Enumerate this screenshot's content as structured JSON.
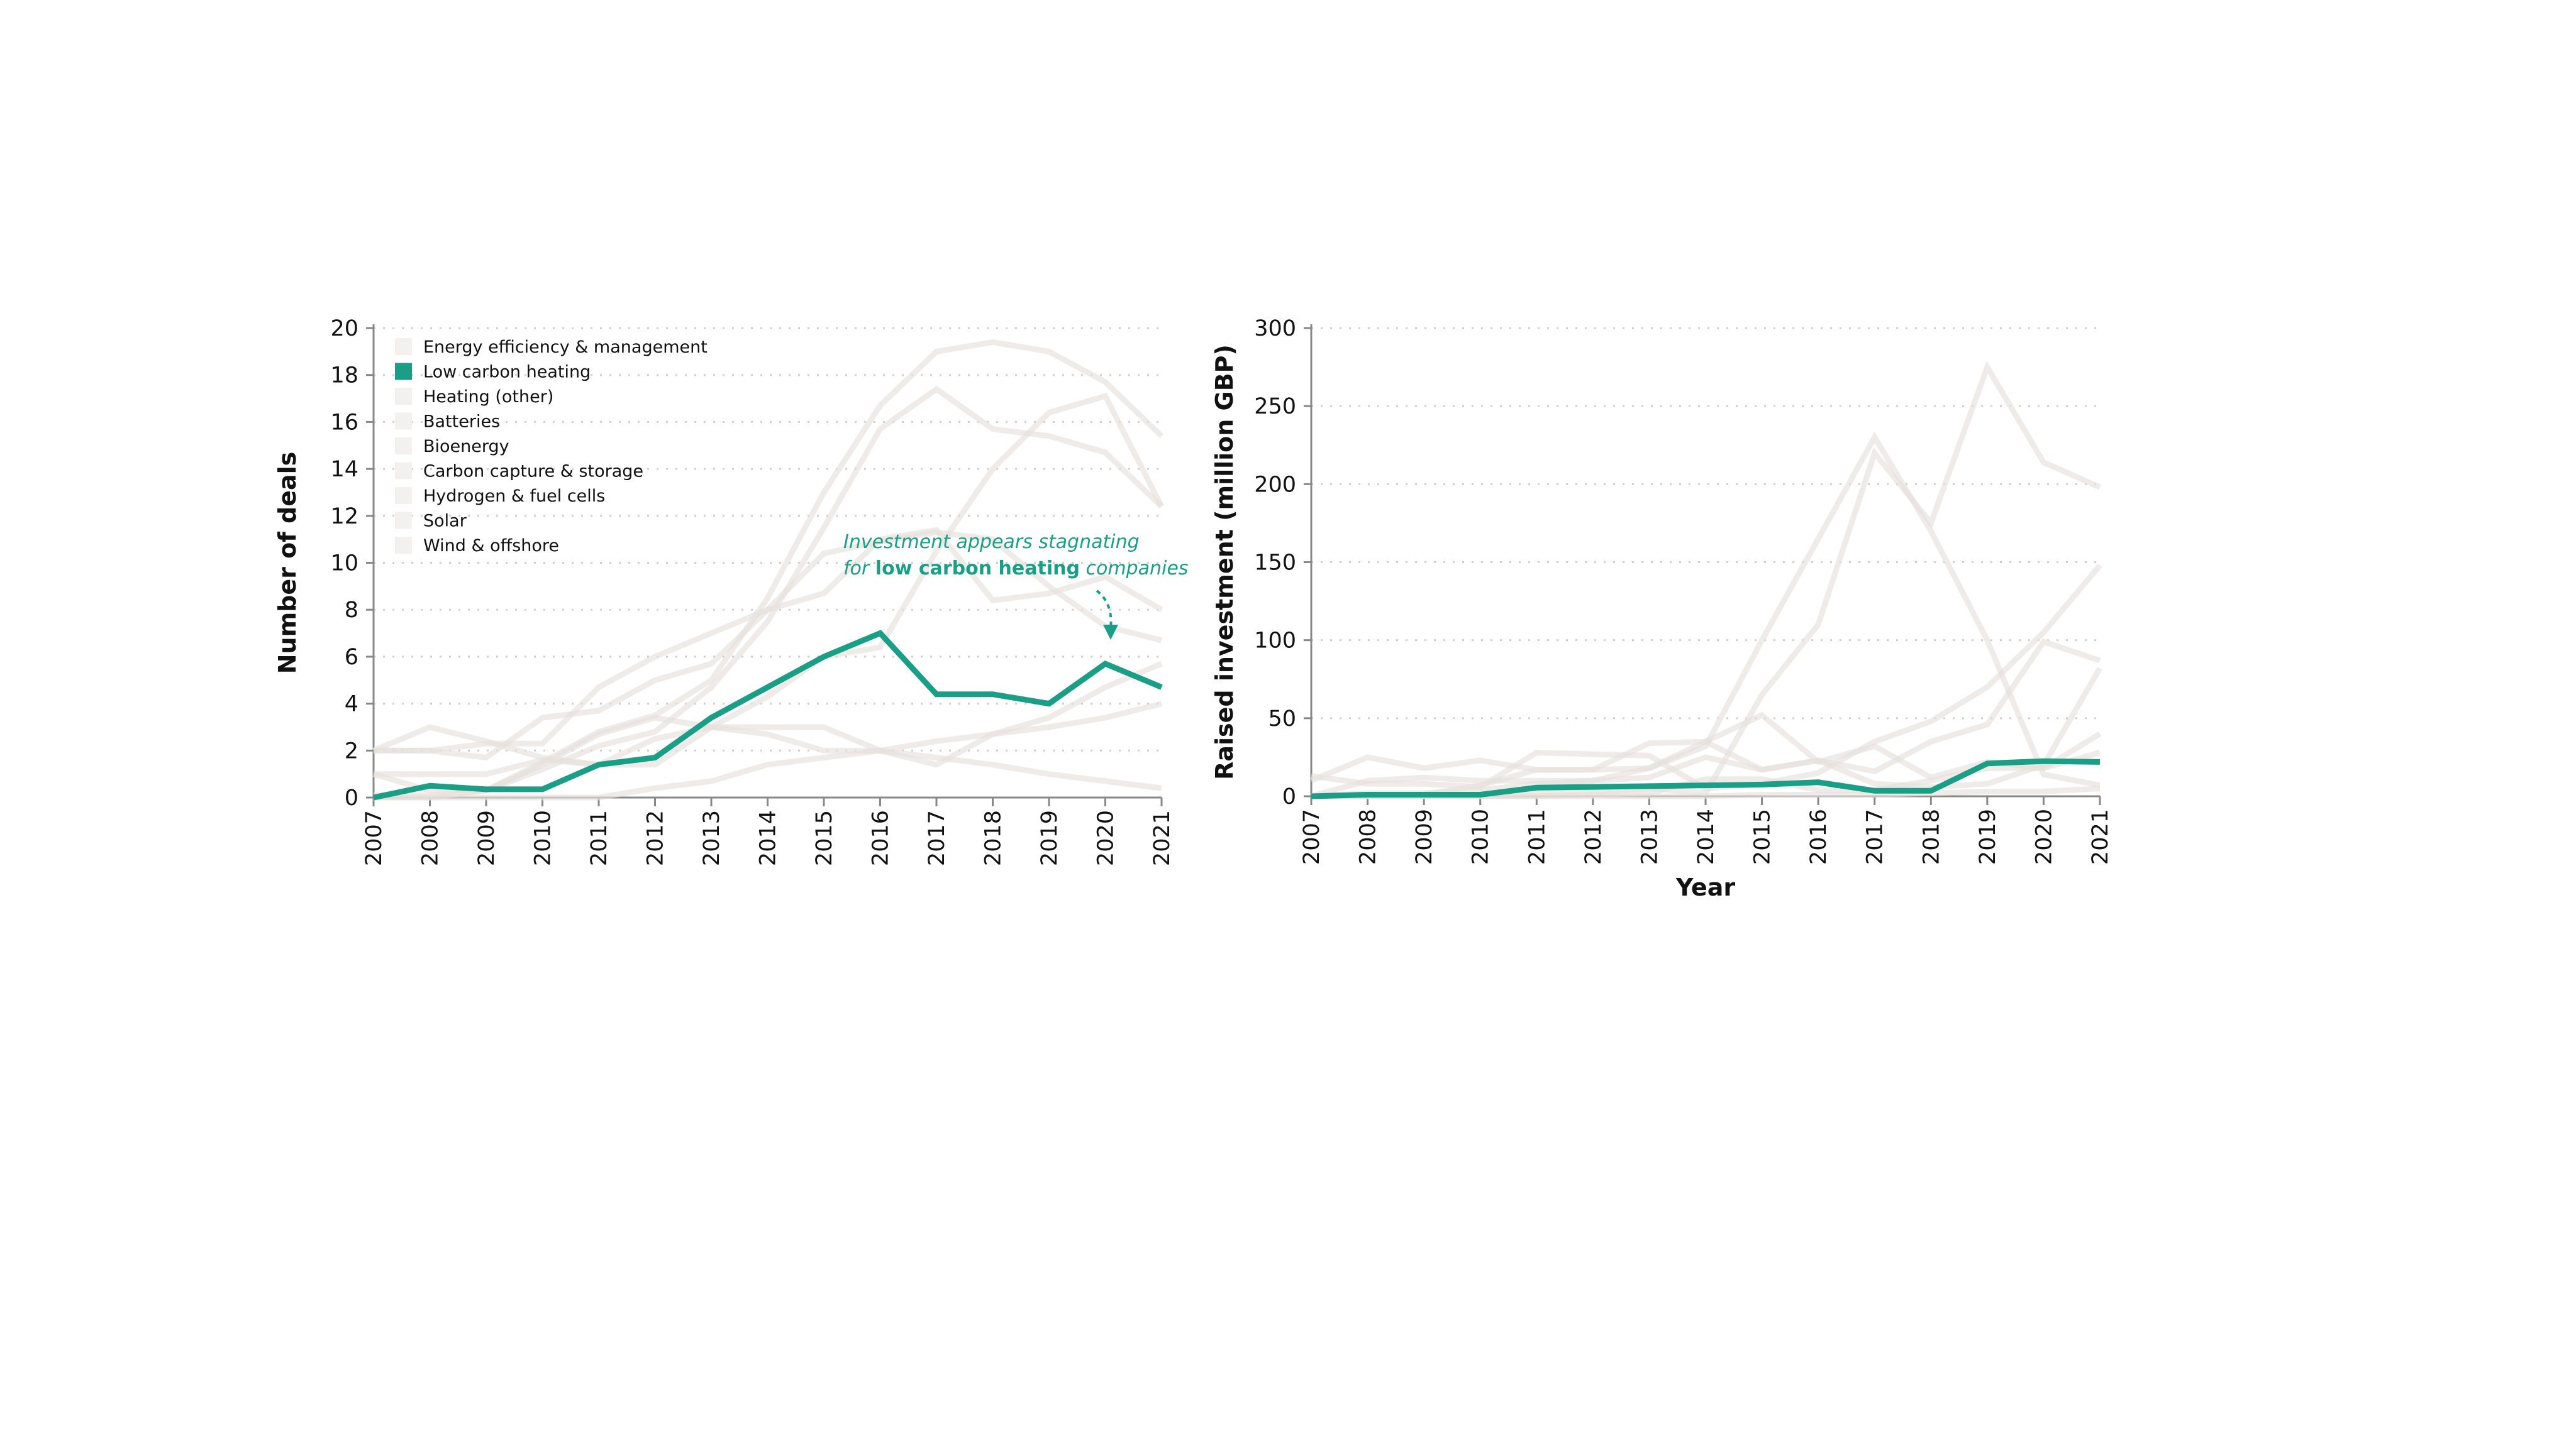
{
  "colors": {
    "highlight": "#1a9e85",
    "muted_line": "#e6e0dc",
    "muted_swatch": "#f3f1ef",
    "grid": "#cfcfcf",
    "axis": "#888888"
  },
  "legend": [
    "Energy efficiency & management",
    "Low carbon heating",
    "Heating (other)",
    "Batteries",
    "Bioenergy",
    "Carbon capture & storage",
    "Hydrogen & fuel cells",
    "Solar",
    "Wind & offshore"
  ],
  "highlight_series": "Low carbon heating",
  "annotation": {
    "line1": "Investment appears stagnating",
    "line2_pre": "for ",
    "line2_bold": "low carbon heating",
    "line2_post": " companies"
  },
  "chart_data": [
    {
      "type": "line",
      "title": "",
      "xlabel": "",
      "ylabel": "Number of deals",
      "ylim": [
        0,
        20
      ],
      "yticks": [
        0,
        2,
        4,
        6,
        8,
        10,
        12,
        14,
        16,
        18,
        20
      ],
      "grid": true,
      "legend_position": "top-left",
      "x": [
        2007,
        2008,
        2009,
        2010,
        2011,
        2012,
        2013,
        2014,
        2015,
        2016,
        2017,
        2018,
        2019,
        2020,
        2021
      ],
      "series": [
        {
          "name": "Energy efficiency & management",
          "values": [
            0,
            0,
            0.3,
            1.5,
            2.8,
            3.5,
            5,
            8.5,
            13,
            16.7,
            19.0,
            19.4,
            19.0,
            17.7,
            15.4
          ]
        },
        {
          "name": "Low carbon heating",
          "values": [
            0,
            0.5,
            0.35,
            0.35,
            1.4,
            1.7,
            3.4,
            4.7,
            6.0,
            7.0,
            4.4,
            4.4,
            4.0,
            5.7,
            4.7
          ]
        },
        {
          "name": "Heating (other)",
          "values": [
            0.1,
            0.1,
            0.3,
            1.2,
            2.2,
            2.8,
            4.7,
            7.5,
            11.5,
            15.7,
            17.4,
            15.7,
            15.4,
            14.7,
            12.4
          ]
        },
        {
          "name": "Batteries",
          "values": [
            1,
            1,
            1,
            1.6,
            1.4,
            2.5,
            3,
            4.3,
            6.0,
            6.4,
            10.5,
            14,
            16.4,
            17.1,
            12.4
          ]
        },
        {
          "name": "Bioenergy",
          "values": [
            2,
            2,
            1.7,
            3.4,
            3.7,
            5.0,
            5.7,
            8.0,
            10.4,
            10.9,
            11.3,
            11.0,
            9.0,
            7.3,
            6.7
          ]
        },
        {
          "name": "Carbon capture & storage",
          "values": [
            2,
            2,
            2.3,
            2.3,
            4.7,
            6.0,
            7.0,
            8.0,
            8.7,
            11.0,
            11.4,
            8.4,
            8.7,
            9.4,
            8.0
          ]
        },
        {
          "name": "Hydrogen & fuel cells",
          "values": [
            2,
            3.0,
            2.4,
            1.7,
            1.4,
            1.4,
            3.0,
            3.0,
            3.0,
            2.0,
            1.4,
            2.7,
            3.4,
            4.7,
            5.7
          ]
        },
        {
          "name": "Solar",
          "values": [
            1.0,
            0.3,
            0.3,
            1.4,
            2.7,
            3.4,
            3.0,
            2.7,
            2.0,
            2.0,
            1.7,
            1.4,
            1.0,
            0.7,
            0.4
          ]
        },
        {
          "name": "Wind & offshore",
          "values": [
            0,
            0,
            0,
            0,
            0,
            0.4,
            0.7,
            1.4,
            1.7,
            2.0,
            2.4,
            2.7,
            3.0,
            3.4,
            4.0
          ]
        }
      ]
    },
    {
      "type": "line",
      "title": "",
      "xlabel": "Year",
      "ylabel": "Raised investment (million GBP)",
      "ylim": [
        0,
        300
      ],
      "yticks": [
        0,
        50,
        100,
        150,
        200,
        250,
        300
      ],
      "grid": true,
      "x": [
        2007,
        2008,
        2009,
        2010,
        2011,
        2012,
        2013,
        2014,
        2015,
        2016,
        2017,
        2018,
        2019,
        2020,
        2021
      ],
      "series": [
        {
          "name": "Energy efficiency & management",
          "values": [
            0,
            0,
            0,
            1,
            2,
            3,
            5,
            2,
            65,
            110,
            220,
            175,
            275,
            214,
            198
          ]
        },
        {
          "name": "Low carbon heating",
          "values": [
            0,
            1,
            1,
            1,
            5.5,
            6,
            6.5,
            7,
            7.5,
            9,
            3.5,
            3.5,
            21,
            22.5,
            22
          ]
        },
        {
          "name": "Heating (other)",
          "values": [
            0,
            2,
            2,
            4,
            8,
            10,
            18,
            32,
            100,
            165,
            230,
            170,
            100,
            14,
            7
          ]
        },
        {
          "name": "Batteries",
          "values": [
            10,
            25,
            18,
            23,
            17,
            17,
            18,
            35,
            52,
            22,
            32,
            12,
            22,
            18,
            28
          ]
        },
        {
          "name": "Bioenergy",
          "values": [
            13,
            8,
            8,
            6,
            28,
            27,
            26,
            5,
            8,
            15,
            35,
            48,
            70,
            105,
            148
          ]
        },
        {
          "name": "Carbon capture & storage",
          "values": [
            0,
            1,
            1,
            7,
            17,
            17,
            34,
            35,
            17,
            23,
            16,
            35,
            46,
            99,
            87
          ]
        },
        {
          "name": "Hydrogen & fuel cells",
          "values": [
            0,
            10,
            12,
            10,
            10,
            10,
            12,
            25,
            17,
            23,
            8,
            6,
            8,
            20,
            82
          ]
        },
        {
          "name": "Solar",
          "values": [
            0,
            0,
            0,
            0,
            0,
            1,
            2,
            11,
            11,
            4,
            4,
            10,
            18,
            18,
            40
          ]
        },
        {
          "name": "Wind & offshore",
          "values": [
            0,
            0,
            0,
            0,
            0,
            0,
            0,
            0,
            1,
            1,
            1,
            2,
            3,
            3,
            5
          ]
        }
      ]
    }
  ]
}
